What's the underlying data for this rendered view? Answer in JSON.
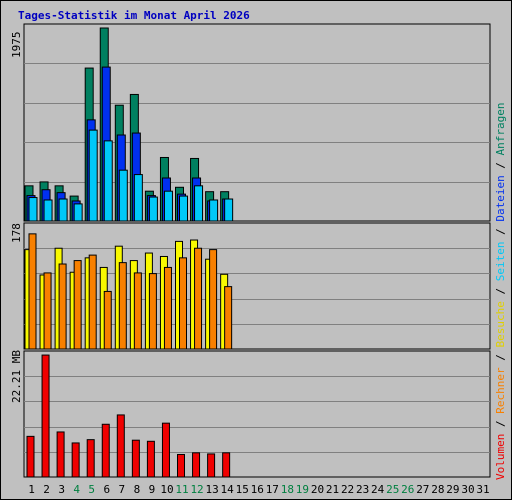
{
  "title": "Tages-Statistik im Monat April 2026",
  "colors": {
    "anfragen": "#008060",
    "dateien": "#0030f0",
    "seiten": "#00c8f8",
    "besuche": "#f8f800",
    "rechner": "#f88000",
    "volumen": "#f00000",
    "weekend_label": "#008040",
    "weekday_label": "#000000"
  },
  "legend": {
    "volumen": "Volumen",
    "rechner": "Rechner",
    "besuche": "Besuche",
    "seiten": "Seiten",
    "dateien": "Dateien",
    "anfragen": "Anfragen",
    "sep": " / "
  },
  "scale_labels": {
    "top": "1975",
    "middle": "178",
    "bottom": "22.21 MB"
  },
  "days": [
    "1",
    "2",
    "3",
    "4",
    "5",
    "6",
    "7",
    "8",
    "9",
    "10",
    "11",
    "12",
    "13",
    "14",
    "15",
    "16",
    "17",
    "18",
    "19",
    "20",
    "21",
    "22",
    "23",
    "24",
    "25",
    "26",
    "27",
    "28",
    "29",
    "30",
    "31"
  ],
  "weekend_days": [
    "4",
    "5",
    "11",
    "12",
    "18",
    "19",
    "25",
    "26"
  ],
  "chart_data": [
    {
      "type": "bar",
      "categories": [
        "1",
        "2",
        "3",
        "4",
        "5",
        "6",
        "7",
        "8",
        "9",
        "10",
        "11",
        "12",
        "13",
        "14"
      ],
      "ymax": 1975,
      "series": [
        {
          "name": "Anfragen",
          "values": [
            360,
            400,
            360,
            255,
            1565,
            1975,
            1185,
            1295,
            305,
            650,
            345,
            640,
            300,
            300
          ]
        },
        {
          "name": "Dateien",
          "values": [
            260,
            320,
            290,
            205,
            1035,
            1575,
            880,
            900,
            260,
            440,
            275,
            440,
            205,
            225
          ]
        },
        {
          "name": "Seiten",
          "values": [
            240,
            215,
            225,
            175,
            930,
            820,
            520,
            475,
            245,
            305,
            255,
            360,
            215,
            225
          ]
        }
      ]
    },
    {
      "type": "bar",
      "categories": [
        "1",
        "2",
        "3",
        "4",
        "5",
        "6",
        "7",
        "8",
        "9",
        "10",
        "11",
        "12",
        "13",
        "14"
      ],
      "ymax": 178,
      "series": [
        {
          "name": "Besuche",
          "values": [
            145,
            108,
            147,
            112,
            133,
            119,
            150,
            129,
            140,
            135,
            157,
            159,
            131,
            109
          ]
        },
        {
          "name": "Rechner",
          "values": [
            168,
            111,
            124,
            129,
            137,
            84,
            126,
            111,
            110,
            119,
            133,
            147,
            145,
            91
          ]
        }
      ]
    },
    {
      "type": "bar",
      "categories": [
        "1",
        "2",
        "3",
        "4",
        "5",
        "6",
        "7",
        "8",
        "9",
        "10",
        "11",
        "12",
        "13",
        "14"
      ],
      "ymax": 22.21,
      "unit": "MB",
      "series": [
        {
          "name": "Volumen",
          "values": [
            7.4,
            22.2,
            8.2,
            6.2,
            6.8,
            9.6,
            11.3,
            6.7,
            6.5,
            9.8,
            4.1,
            4.4,
            4.2,
            4.4
          ]
        }
      ]
    }
  ]
}
